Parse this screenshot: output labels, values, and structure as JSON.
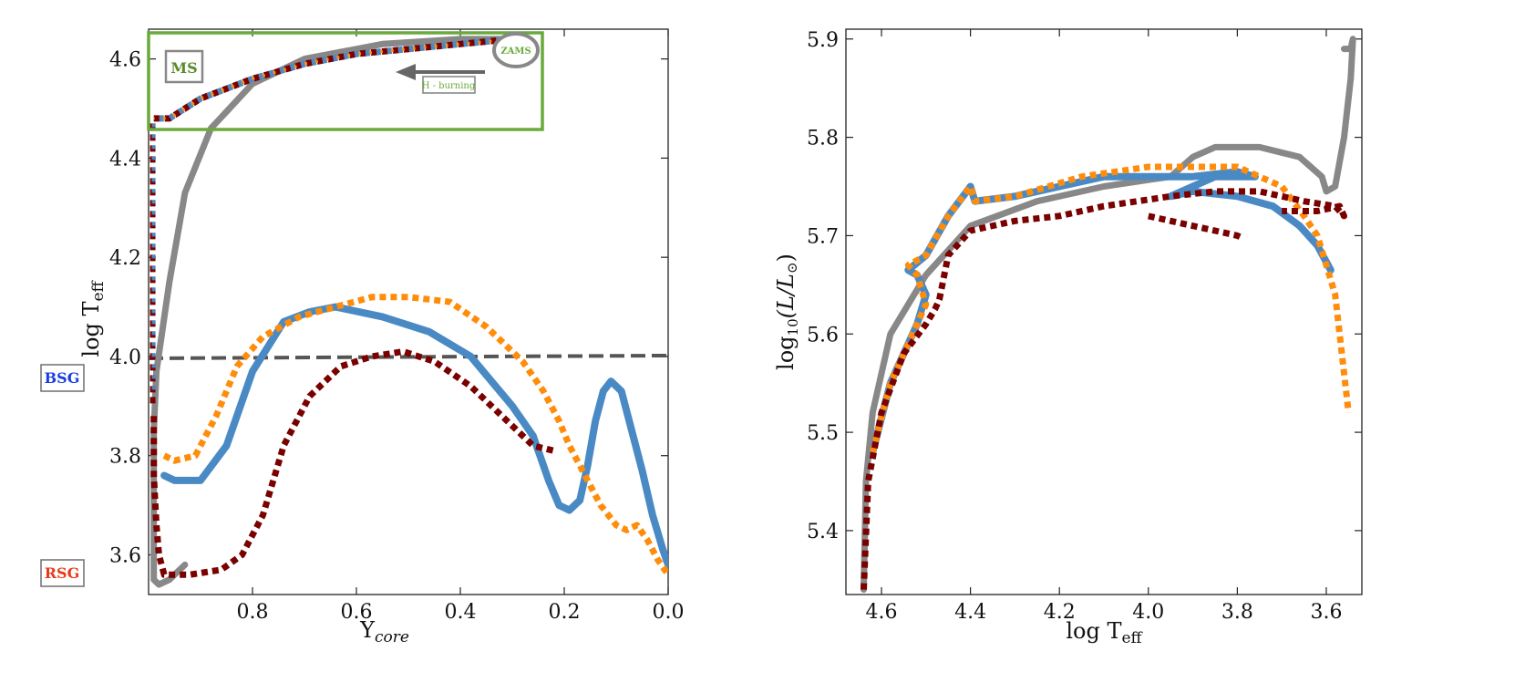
{
  "colors": {
    "gray": "#888888",
    "blue": "#4a8ac4",
    "orange": "#ff8c0a",
    "darkred": "#7a0000",
    "dashed": "#555555",
    "ms_box": "#6aaa3a",
    "bsg_text": "#1a3fe0",
    "rsg_text": "#e83a1a"
  },
  "labels": {
    "ms": "MS",
    "zams": "ZAMS",
    "h_burning": "H - burning",
    "bsg": "BSG",
    "rsg": "RSG"
  },
  "chart_data": [
    {
      "type": "line",
      "title": "",
      "xlabel": "Y_core",
      "xlabel_main": "Y",
      "xlabel_sub": "core",
      "ylabel": "log T_eff",
      "ylabel_main": "log T",
      "ylabel_sub": "eff",
      "xlim": [
        1.0,
        0.0
      ],
      "ylim": [
        3.52,
        4.66
      ],
      "xticks": [
        0.8,
        0.6,
        0.4,
        0.2,
        0.0
      ],
      "xtick_labels": [
        "0.8",
        "0.6",
        "0.4",
        "0.2",
        "0.0"
      ],
      "yticks": [
        3.6,
        3.8,
        4.0,
        4.2,
        4.4,
        4.6
      ],
      "ytick_labels": [
        "3.6",
        "3.8",
        "4.0",
        "4.2",
        "4.4",
        "4.6"
      ],
      "reference_line": {
        "y": 4.0,
        "style": "dashed"
      },
      "annotations": [
        {
          "text": "MS",
          "region": "main sequence box, top-left"
        },
        {
          "text": "ZAMS",
          "region": "circle, top-right"
        },
        {
          "text": "H - burning",
          "region": "arrow pointing left"
        },
        {
          "text": "BSG",
          "region": "left of y-axis at 3.96"
        },
        {
          "text": "RSG",
          "region": "left of y-axis at 3.55"
        }
      ],
      "series": [
        {
          "name": "gray",
          "style": "solid",
          "x": [
            0.3,
            0.4,
            0.55,
            0.7,
            0.8,
            0.88,
            0.93,
            0.96,
            0.985,
            0.99,
            0.99,
            0.99,
            0.98,
            0.96,
            0.93
          ],
          "y": [
            4.64,
            4.64,
            4.63,
            4.6,
            4.55,
            4.46,
            4.33,
            4.15,
            3.97,
            3.85,
            3.7,
            3.55,
            3.54,
            3.55,
            3.58
          ]
        },
        {
          "name": "blue",
          "style": "solid",
          "x": [
            0.97,
            0.95,
            0.9,
            0.85,
            0.8,
            0.74,
            0.69,
            0.64,
            0.55,
            0.46,
            0.38,
            0.3,
            0.26,
            0.23,
            0.21,
            0.19,
            0.17,
            0.155,
            0.14,
            0.125,
            0.11,
            0.09,
            0.07,
            0.05,
            0.03,
            0.01,
            0.0
          ],
          "y": [
            3.76,
            3.75,
            3.75,
            3.82,
            3.97,
            4.07,
            4.09,
            4.1,
            4.08,
            4.05,
            4.0,
            3.9,
            3.84,
            3.75,
            3.7,
            3.69,
            3.71,
            3.78,
            3.87,
            3.93,
            3.95,
            3.93,
            3.85,
            3.77,
            3.68,
            3.61,
            3.58
          ]
        },
        {
          "name": "orange",
          "style": "dotted",
          "x": [
            0.97,
            0.95,
            0.91,
            0.87,
            0.83,
            0.78,
            0.71,
            0.64,
            0.57,
            0.5,
            0.42,
            0.35,
            0.28,
            0.24,
            0.21,
            0.19,
            0.17,
            0.15,
            0.13,
            0.1,
            0.08,
            0.06,
            0.04,
            0.02,
            0.0
          ],
          "y": [
            3.8,
            3.79,
            3.8,
            3.88,
            3.98,
            4.04,
            4.08,
            4.1,
            4.12,
            4.12,
            4.11,
            4.06,
            3.99,
            3.93,
            3.87,
            3.82,
            3.78,
            3.74,
            3.7,
            3.66,
            3.65,
            3.66,
            3.63,
            3.59,
            3.56
          ]
        },
        {
          "name": "darkred",
          "style": "dotted",
          "x": [
            0.99,
            0.99,
            0.985,
            0.98,
            0.97,
            0.92,
            0.86,
            0.82,
            0.78,
            0.74,
            0.69,
            0.63,
            0.57,
            0.51,
            0.45,
            0.38,
            0.31,
            0.26,
            0.22
          ],
          "y": [
            3.88,
            3.76,
            3.66,
            3.6,
            3.56,
            3.56,
            3.57,
            3.6,
            3.68,
            3.82,
            3.92,
            3.98,
            4.0,
            4.01,
            3.99,
            3.94,
            3.87,
            3.82,
            3.81
          ]
        },
        {
          "name": "ms_track",
          "style": "dotted",
          "x": [
            0.99,
            0.96,
            0.9,
            0.8,
            0.7,
            0.6,
            0.5,
            0.4,
            0.3
          ],
          "y": [
            4.48,
            4.48,
            4.52,
            4.56,
            4.59,
            4.61,
            4.62,
            4.63,
            4.64
          ]
        }
      ]
    },
    {
      "type": "line",
      "title": "",
      "xlabel": "log T_eff",
      "xlabel_main": "log T",
      "xlabel_sub": "eff",
      "ylabel": "log10(L/L_sun)",
      "ylabel_main": "log",
      "ylabel_sub": "10",
      "ylabel_tail": "(L/L",
      "ylabel_close": ")",
      "xlim": [
        4.68,
        3.52
      ],
      "ylim": [
        5.335,
        5.91
      ],
      "xticks": [
        4.6,
        4.4,
        4.2,
        4.0,
        3.8,
        3.6
      ],
      "xtick_labels": [
        "4.6",
        "4.4",
        "4.2",
        "4.0",
        "3.8",
        "3.6"
      ],
      "yticks": [
        5.4,
        5.5,
        5.6,
        5.7,
        5.8,
        5.9
      ],
      "ytick_labels": [
        "5.4",
        "5.5",
        "5.6",
        "5.7",
        "5.8",
        "5.9"
      ],
      "series": [
        {
          "name": "gray",
          "style": "solid",
          "x": [
            4.64,
            4.635,
            4.62,
            4.58,
            4.5,
            4.4,
            4.25,
            4.1,
            3.95,
            3.9,
            3.85,
            3.75,
            3.66,
            3.61,
            3.6,
            3.58,
            3.56,
            3.545,
            3.54,
            3.545,
            3.56
          ],
          "y": [
            5.34,
            5.45,
            5.52,
            5.6,
            5.66,
            5.71,
            5.735,
            5.75,
            5.76,
            5.78,
            5.79,
            5.79,
            5.78,
            5.76,
            5.745,
            5.75,
            5.8,
            5.86,
            5.9,
            5.89,
            5.89
          ]
        },
        {
          "name": "blue",
          "style": "solid",
          "x": [
            4.62,
            4.58,
            4.52,
            4.5,
            4.52,
            4.54,
            4.5,
            4.45,
            4.4,
            4.39,
            4.3,
            4.2,
            4.1,
            4.0,
            3.9,
            3.8,
            3.76,
            3.85,
            3.95,
            3.9,
            3.8,
            3.72,
            3.66,
            3.62,
            3.59
          ],
          "y": [
            5.48,
            5.55,
            5.61,
            5.64,
            5.66,
            5.665,
            5.68,
            5.72,
            5.75,
            5.735,
            5.74,
            5.75,
            5.76,
            5.76,
            5.76,
            5.765,
            5.76,
            5.76,
            5.74,
            5.745,
            5.74,
            5.73,
            5.71,
            5.69,
            5.665
          ]
        },
        {
          "name": "orange",
          "style": "dotted",
          "x": [
            4.62,
            4.58,
            4.53,
            4.5,
            4.52,
            4.54,
            4.5,
            4.45,
            4.4,
            4.39,
            4.3,
            4.15,
            4.0,
            3.9,
            3.8,
            3.7,
            3.65,
            3.62,
            3.6,
            3.58,
            3.57,
            3.56,
            3.55
          ],
          "y": [
            5.48,
            5.55,
            5.6,
            5.63,
            5.66,
            5.67,
            5.68,
            5.72,
            5.75,
            5.735,
            5.74,
            5.76,
            5.77,
            5.77,
            5.77,
            5.75,
            5.72,
            5.7,
            5.67,
            5.64,
            5.6,
            5.56,
            5.52
          ]
        },
        {
          "name": "darkred",
          "style": "dotted",
          "x": [
            4.64,
            4.63,
            4.6,
            4.55,
            4.5,
            4.48,
            4.47,
            4.45,
            4.4,
            4.3,
            4.2,
            4.1,
            3.95,
            3.85,
            3.75,
            3.65,
            3.58,
            3.56,
            3.57,
            3.62,
            3.7
          ],
          "y": [
            5.34,
            5.45,
            5.52,
            5.58,
            5.61,
            5.625,
            5.635,
            5.68,
            5.705,
            5.715,
            5.72,
            5.73,
            5.74,
            5.745,
            5.745,
            5.735,
            5.73,
            5.72,
            5.73,
            5.725,
            5.725
          ]
        },
        {
          "name": "darkred_branch",
          "style": "dotted",
          "x": [
            4.0,
            3.95,
            3.9,
            3.85,
            3.8,
            3.79
          ],
          "y": [
            5.72,
            5.715,
            5.71,
            5.705,
            5.7,
            5.698
          ]
        }
      ]
    }
  ]
}
